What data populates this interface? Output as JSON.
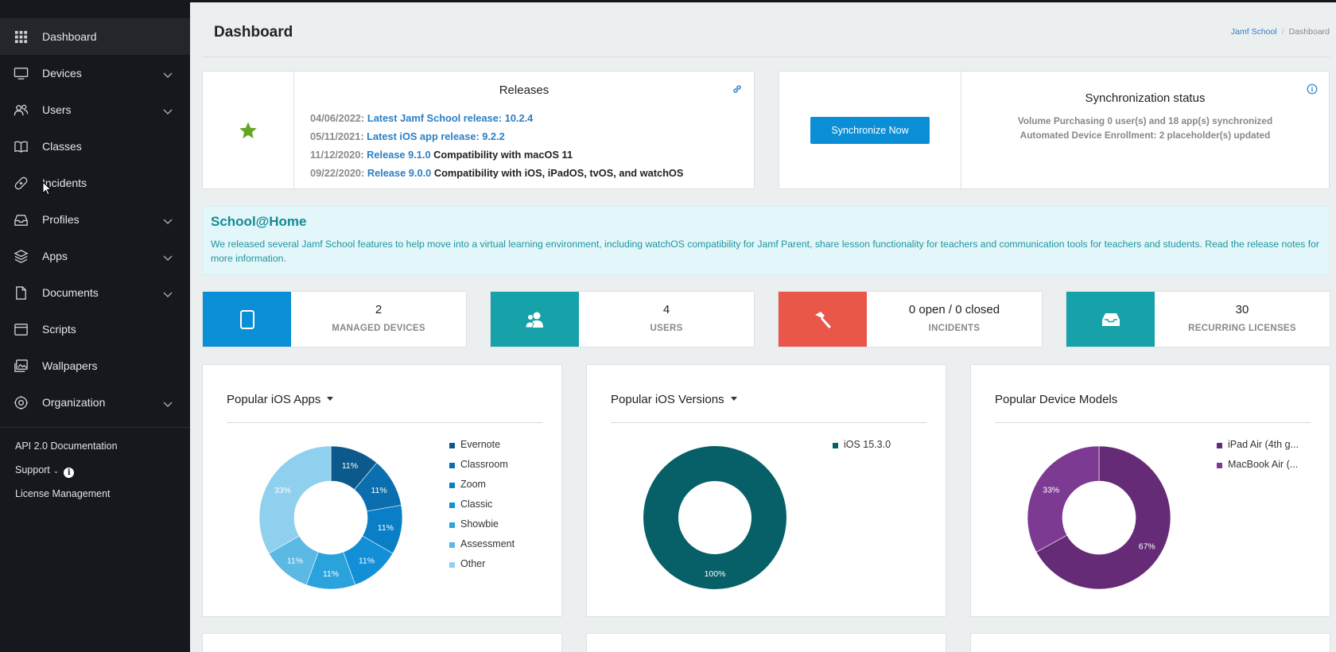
{
  "sidebar": {
    "items": [
      {
        "label": "Dashboard",
        "icon": "grid-icon",
        "expandable": false,
        "active": true
      },
      {
        "label": "Devices",
        "icon": "monitor-icon",
        "expandable": true
      },
      {
        "label": "Users",
        "icon": "users-icon",
        "expandable": true
      },
      {
        "label": "Classes",
        "icon": "book-icon",
        "expandable": false
      },
      {
        "label": "Incidents",
        "icon": "bandage-icon",
        "expandable": false
      },
      {
        "label": "Profiles",
        "icon": "inbox-icon",
        "expandable": true
      },
      {
        "label": "Apps",
        "icon": "layers-icon",
        "expandable": true
      },
      {
        "label": "Documents",
        "icon": "document-icon",
        "expandable": true
      },
      {
        "label": "Scripts",
        "icon": "terminal-icon",
        "expandable": false
      },
      {
        "label": "Wallpapers",
        "icon": "images-icon",
        "expandable": false
      },
      {
        "label": "Organization",
        "icon": "gear-icon",
        "expandable": true
      }
    ],
    "footer": {
      "api_docs": "API 2.0 Documentation",
      "support": "Support",
      "license": "License Management"
    }
  },
  "header": {
    "title": "Dashboard",
    "breadcrumb": {
      "root": "Jamf School",
      "current": "Dashboard"
    }
  },
  "releases": {
    "title": "Releases",
    "items": [
      {
        "date": "04/06/2022:",
        "link": "Latest Jamf School release: 10.2.4",
        "text": ""
      },
      {
        "date": "05/11/2021:",
        "link": "Latest iOS app release: 9.2.2",
        "text": ""
      },
      {
        "date": "11/12/2020:",
        "link": "Release 9.1.0",
        "text": "Compatibility with macOS 11"
      },
      {
        "date": "09/22/2020:",
        "link": "Release 9.0.0",
        "text": "Compatibility with iOS, iPadOS, tvOS, and watchOS"
      }
    ]
  },
  "sync": {
    "button": "Synchronize Now",
    "title": "Synchronization status",
    "line1": "Volume Purchasing 0 user(s) and 18 app(s) synchronized",
    "line2": "Automated Device Enrollment: 2 placeholder(s) updated"
  },
  "school_home": {
    "title": "School@Home",
    "text": "We released several Jamf School features to help move into a virtual learning environment, including watchOS compatibility for Jamf Parent, share lesson functionality for teachers and communication tools for teachers and students. Read the release notes for more information."
  },
  "stats": [
    {
      "value": "2",
      "label": "MANAGED DEVICES",
      "color": "#0a8fd6",
      "icon": "tablet-icon"
    },
    {
      "value": "4",
      "label": "USERS",
      "color": "#16a2a8",
      "icon": "users-icon"
    },
    {
      "value": "0 open / 0 closed",
      "label": "INCIDENTS",
      "color": "#e8574a",
      "icon": "hammer-icon"
    },
    {
      "value": "30",
      "label": "RECURRING LICENSES",
      "color": "#16a2a8",
      "icon": "inbox-icon"
    }
  ],
  "chart_data": [
    {
      "type": "pie",
      "title": "Popular iOS Apps",
      "categories": [
        "Evernote",
        "Classroom",
        "Zoom",
        "Classic",
        "Showbie",
        "Assessment",
        "Other"
      ],
      "values": [
        11,
        11,
        11,
        11,
        11,
        11,
        33
      ],
      "colors": [
        "#0c5a8c",
        "#0a6eaf",
        "#0a7fc8",
        "#128fd6",
        "#2aa3dc",
        "#5bb9e4",
        "#8fd0ee"
      ],
      "value_labels": [
        "11%",
        "11%",
        "11%",
        "11%",
        "11%",
        "11%",
        "33%"
      ],
      "has_dropdown": true
    },
    {
      "type": "pie",
      "title": "Popular iOS Versions",
      "categories": [
        "iOS 15.3.0"
      ],
      "values": [
        100
      ],
      "colors": [
        "#075f67"
      ],
      "value_labels": [
        "100%"
      ],
      "has_dropdown": true
    },
    {
      "type": "pie",
      "title": "Popular Device Models",
      "categories": [
        "iPad Air (4th g...",
        "MacBook Air (..."
      ],
      "values": [
        67,
        33
      ],
      "colors": [
        "#652b77",
        "#7d3a93"
      ],
      "value_labels": [
        "67%",
        "33%"
      ],
      "has_dropdown": false
    }
  ]
}
